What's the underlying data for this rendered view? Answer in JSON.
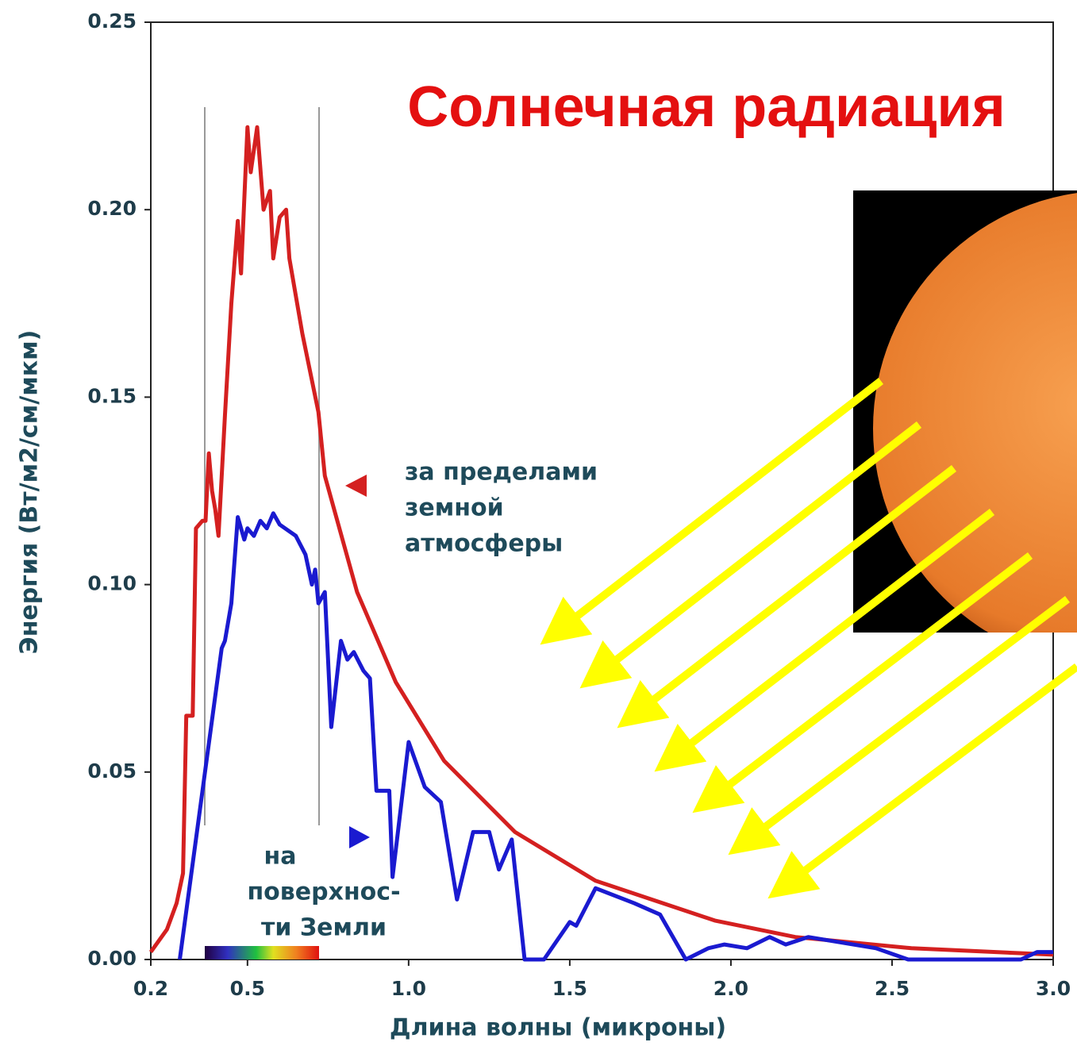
{
  "chart_data": {
    "type": "line",
    "title": "Солнечная радиация",
    "x_label": "Длина волны (микроны)",
    "y_label": "Энергия (Вт/м2/см/мкм)",
    "xlim": [
      0.2,
      3.0
    ],
    "ylim": [
      0,
      0.25
    ],
    "xticks": [
      0.2,
      0.5,
      {
        "value": 1,
        "label": "1.0"
      },
      1.5,
      {
        "value": 2,
        "label": "2.0"
      },
      2.5,
      {
        "value": 3,
        "label": "3.0"
      }
    ],
    "yticks": [
      {
        "value": 0,
        "label": "0.00"
      },
      0.05,
      {
        "value": 0.1,
        "label": "0.10"
      },
      0.15,
      {
        "value": 0.2,
        "label": "0.20"
      },
      0.25
    ],
    "grid": false,
    "series": [
      {
        "color": "#d42020",
        "x": [
          0.2,
          0.25,
          0.28,
          0.3,
          0.31,
          0.33,
          0.34,
          0.36,
          0.37,
          0.38,
          0.39,
          0.4,
          0.41,
          0.43,
          0.45,
          0.47,
          0.48,
          0.5,
          0.51,
          0.53,
          0.55,
          0.57,
          0.58,
          0.6,
          0.62,
          0.63,
          0.67,
          0.72,
          0.74,
          0.84,
          0.96,
          1.11,
          1.33,
          1.58,
          1.95,
          2.2,
          2.56,
          3.0
        ],
        "values": [
          0.002,
          0.008,
          0.015,
          0.023,
          0.065,
          0.065,
          0.115,
          0.117,
          0.117,
          0.135,
          0.125,
          0.12,
          0.113,
          0.145,
          0.175,
          0.197,
          0.183,
          0.222,
          0.21,
          0.222,
          0.2,
          0.205,
          0.187,
          0.198,
          0.2,
          0.187,
          0.167,
          0.146,
          0.129,
          0.098,
          0.074,
          0.053,
          0.034,
          0.021,
          0.0104,
          0.006,
          0.003,
          0.0013
        ]
      },
      {
        "color": "#1a1ad0",
        "x": [
          0.29,
          0.42,
          0.43,
          0.45,
          0.47,
          0.49,
          0.5,
          0.52,
          0.54,
          0.56,
          0.58,
          0.6,
          0.65,
          0.68,
          0.7,
          0.71,
          0.72,
          0.74,
          0.76,
          0.79,
          0.81,
          0.83,
          0.86,
          0.88,
          0.9,
          0.92,
          0.94,
          0.95,
          1.0,
          1.05,
          1.1,
          1.15,
          1.2,
          1.25,
          1.28,
          1.32,
          1.36,
          1.42,
          1.5,
          1.52,
          1.58,
          1.7,
          1.78,
          1.86,
          1.93,
          1.98,
          2.05,
          2.12,
          2.17,
          2.24,
          2.45,
          2.55,
          2.9,
          2.95,
          3.0
        ],
        "values": [
          0,
          0.083,
          0.085,
          0.095,
          0.118,
          0.112,
          0.115,
          0.113,
          0.117,
          0.115,
          0.119,
          0.116,
          0.113,
          0.108,
          0.1,
          0.104,
          0.095,
          0.098,
          0.062,
          0.085,
          0.08,
          0.082,
          0.077,
          0.075,
          0.045,
          0.045,
          0.045,
          0.022,
          0.058,
          0.046,
          0.042,
          0.016,
          0.034,
          0.034,
          0.024,
          0.032,
          0,
          0,
          0.01,
          0.009,
          0.019,
          0.015,
          0.012,
          0,
          0.003,
          0.004,
          0.003,
          0.006,
          0.004,
          0.006,
          0.003,
          0,
          0,
          0.002,
          0.002
        ]
      }
    ],
    "annotations": [
      {
        "lines": [
          "за пределами",
          "земной",
          "атмосферы"
        ]
      },
      {
        "lines": [
          "на",
          "поверхнос-",
          "ти Земли"
        ]
      }
    ]
  }
}
